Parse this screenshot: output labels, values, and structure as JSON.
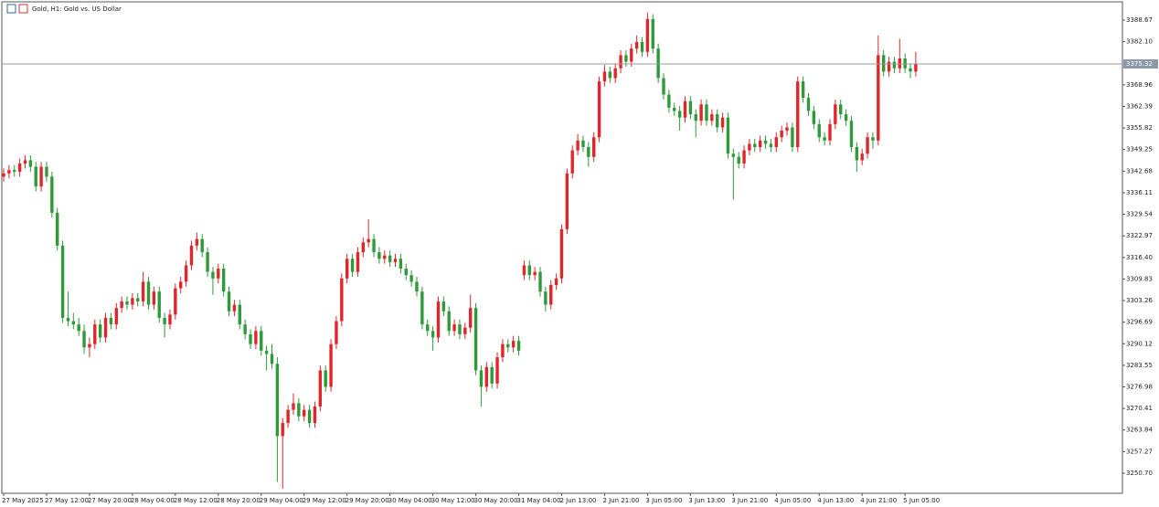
{
  "chart_data": {
    "type": "candlestick",
    "title": "Gold, H1:  Gold vs. US Dollar",
    "categories": [
      "27 May 2025",
      null,
      null,
      null,
      null,
      null,
      null,
      null,
      "27 May 12:00",
      null,
      null,
      null,
      null,
      null,
      null,
      null,
      "27 May 20:00",
      null,
      null,
      null,
      null,
      null,
      null,
      null,
      "28 May 04:00",
      null,
      null,
      null,
      null,
      null,
      null,
      null,
      "28 May 12:00",
      null,
      null,
      null,
      null,
      null,
      null,
      null,
      "28 May 20:00",
      null,
      null,
      null,
      null,
      null,
      null,
      null,
      "29 May 04:00",
      null,
      null,
      null,
      null,
      null,
      null,
      null,
      "29 May 12:00",
      null,
      null,
      null,
      null,
      null,
      null,
      null,
      "29 May 20:00",
      null,
      null,
      null,
      null,
      null,
      null,
      null,
      "30 May 04:00",
      null,
      null,
      null,
      null,
      null,
      null,
      null,
      "30 May 12:00",
      null,
      null,
      null,
      null,
      null,
      null,
      null,
      "30 May 20:00",
      null,
      null,
      null,
      null,
      null,
      null,
      null,
      "31 May 04:00",
      null,
      null,
      null,
      null,
      null,
      null,
      null,
      "2 Jun 13:00",
      null,
      null,
      null,
      null,
      null,
      null,
      null,
      "2 Jun 21:00",
      null,
      null,
      null,
      null,
      null,
      null,
      null,
      "3 Jun 05:00",
      null,
      null,
      null,
      null,
      null,
      null,
      null,
      "3 Jun 13:00",
      null,
      null,
      null,
      null,
      null,
      null,
      null,
      "3 Jun 21:00",
      null,
      null,
      null,
      null,
      null,
      null,
      null,
      "4 Jun 05:00",
      null,
      null,
      null,
      null,
      null,
      null,
      null,
      "4 Jun 13:00",
      null,
      null,
      null,
      null,
      null,
      null,
      null,
      "4 Jun 21:00",
      null,
      null,
      null,
      null,
      null,
      null,
      null,
      "5 Jun 05:00",
      null,
      null
    ],
    "open": [
      3341,
      3342,
      3343,
      3342.5,
      3345,
      3346,
      3344,
      3338,
      3344,
      3341,
      3330,
      3320,
      3298,
      3297,
      3296,
      3294,
      3289,
      3290,
      3296,
      3292,
      3298,
      3296,
      3301,
      3303,
      3302,
      3304,
      3303,
      3309,
      3302,
      3306,
      3298,
      3296,
      3299,
      3307,
      3309,
      3314,
      3320,
      3322,
      3318,
      3312,
      3310,
      3313,
      3306,
      3300,
      3302,
      3296,
      3293,
      3290,
      3294,
      3288,
      3287,
      3284,
      3262,
      3266,
      3270,
      3272,
      3268,
      3270,
      3266,
      3271,
      3282,
      3277,
      3290,
      3297,
      3310,
      3316,
      3312,
      3318,
      3321,
      3322,
      3318,
      3316,
      3317,
      3315,
      3316,
      3313,
      3311,
      3309,
      3306,
      3296,
      3294,
      3292,
      3303,
      3300,
      3294,
      3296,
      3293,
      3295,
      3301,
      3282,
      3277,
      3283,
      3278,
      3286,
      3290,
      3289,
      3291,
      3311,
      3314,
      3311,
      3312,
      3306,
      3302,
      3308,
      3310,
      3325,
      3342,
      3349,
      3352,
      3350,
      3347,
      3353,
      3370,
      3373,
      3371,
      3374,
      3378,
      3376,
      3380,
      3382,
      3379,
      3389,
      3380,
      3371,
      3366,
      3362,
      3361,
      3359,
      3364,
      3360,
      3358,
      3363,
      3358,
      3360,
      3356,
      3359,
      3348,
      3347,
      3345,
      3349,
      3351,
      3350,
      3352,
      3351,
      3350,
      3353,
      3355,
      3356,
      3350,
      3370,
      3365,
      3361,
      3357,
      3353,
      3352,
      3357,
      3363,
      3360,
      3358,
      3350,
      3346,
      3348,
      3353,
      3352,
      3378,
      3373,
      3376,
      3374,
      3377,
      3374,
      3373
    ],
    "high": [
      3343.5,
      3344.5,
      3344.5,
      3346.5,
      3347.5,
      3347.5,
      3345.5,
      3345.5,
      3345.5,
      3342.5,
      3331.5,
      3321.5,
      3306,
      3299.5,
      3298,
      3296,
      3292,
      3297.5,
      3297.5,
      3299.5,
      3299.5,
      3302.5,
      3304.5,
      3304.5,
      3305.5,
      3305.5,
      3312,
      3310.5,
      3307.5,
      3307.5,
      3299.5,
      3300.5,
      3308.5,
      3310.5,
      3315.5,
      3321.5,
      3324,
      3323.5,
      3319.5,
      3313.5,
      3314.5,
      3314.5,
      3307.5,
      3303.5,
      3303.5,
      3297.5,
      3294.5,
      3295.5,
      3295.5,
      3289.5,
      3290,
      3286,
      3267.5,
      3271.5,
      3275,
      3273.5,
      3271.5,
      3271.5,
      3272.5,
      3283.5,
      3283.5,
      3291.5,
      3298.5,
      3311.5,
      3317.5,
      3317.5,
      3319.5,
      3322.5,
      3328,
      3323.5,
      3319.5,
      3318.5,
      3318.5,
      3317.5,
      3317.5,
      3314.5,
      3312.5,
      3310.5,
      3307.5,
      3297.5,
      3295.5,
      3304.5,
      3304.5,
      3301.5,
      3297.5,
      3297.5,
      3296.5,
      3305,
      3302.5,
      3283.5,
      3284.5,
      3284.5,
      3287.5,
      3291.5,
      3291.5,
      3292.5,
      3292.5,
      3315.5,
      3315.5,
      3313.5,
      3313.5,
      3307.5,
      3309.5,
      3311.5,
      3326.5,
      3343.5,
      3350.5,
      3354,
      3353.5,
      3351.5,
      3354.5,
      3371.5,
      3375,
      3374.5,
      3375.5,
      3379.5,
      3379.5,
      3381.5,
      3384,
      3383.5,
      3391,
      3390.5,
      3381.5,
      3372.5,
      3367.5,
      3363.5,
      3362.5,
      3365.5,
      3365.5,
      3361.5,
      3364.5,
      3364.5,
      3361.5,
      3361.5,
      3360.5,
      3360.5,
      3349.5,
      3348.5,
      3350.5,
      3352.5,
      3352.5,
      3353.5,
      3353.5,
      3352.5,
      3354.5,
      3356.5,
      3357.5,
      3357.5,
      3371.5,
      3371.5,
      3366.5,
      3362.5,
      3358.5,
      3354.5,
      3358.5,
      3364.5,
      3364.5,
      3361.5,
      3359.5,
      3351.5,
      3349.5,
      3354.5,
      3354.5,
      3384,
      3379.5,
      3377.5,
      3377.5,
      3383,
      3378.5,
      3375.5,
      3379
    ],
    "low": [
      3339.5,
      3340.5,
      3341,
      3341,
      3343.5,
      3342.5,
      3336.5,
      3336.5,
      3339.5,
      3328.5,
      3318.5,
      3296.5,
      3295.5,
      3294.5,
      3292.5,
      3287,
      3286,
      3288.5,
      3290.5,
      3290.5,
      3294.5,
      3294.5,
      3299.5,
      3300.5,
      3300.5,
      3301.5,
      3301.5,
      3300.5,
      3300.5,
      3296.5,
      3292,
      3294.5,
      3297.5,
      3305.5,
      3307.5,
      3312.5,
      3318.5,
      3316.5,
      3310.5,
      3305,
      3308.5,
      3304.5,
      3298.5,
      3298.5,
      3294.5,
      3291.5,
      3288.5,
      3288.5,
      3286.5,
      3282,
      3282.5,
      3248,
      3246,
      3264.5,
      3268.5,
      3266.5,
      3266.5,
      3264.5,
      3264.5,
      3269.5,
      3275.5,
      3275.5,
      3288.5,
      3295.5,
      3308.5,
      3310.5,
      3310.5,
      3316.5,
      3319.5,
      3316.5,
      3314.5,
      3314.5,
      3313.5,
      3313.5,
      3311.5,
      3309.5,
      3307.5,
      3304.5,
      3294.5,
      3292.5,
      3288,
      3290.5,
      3298.5,
      3292.5,
      3292.5,
      3291.5,
      3291.5,
      3293.5,
      3280.5,
      3271,
      3275.5,
      3276.5,
      3276.5,
      3284.5,
      3287.5,
      3287.5,
      3286.5,
      3309.5,
      3309.5,
      3309.5,
      3304.5,
      3300,
      3300.5,
      3306.5,
      3308.5,
      3323.5,
      3340.5,
      3347.5,
      3348.5,
      3344,
      3345.5,
      3351.5,
      3368.5,
      3369.5,
      3369.5,
      3372.5,
      3374.5,
      3374.5,
      3378.5,
      3377.5,
      3377.5,
      3378.5,
      3369.5,
      3364.5,
      3360.5,
      3359.5,
      3355,
      3357.5,
      3358.5,
      3353,
      3356.5,
      3356.5,
      3356.5,
      3354.5,
      3354.5,
      3346.5,
      3334,
      3343.5,
      3343.5,
      3347.5,
      3348.5,
      3348.5,
      3349.5,
      3348.5,
      3348.5,
      3351.5,
      3353.5,
      3348.5,
      3348.5,
      3363.5,
      3359.5,
      3355.5,
      3351.5,
      3350.5,
      3350.5,
      3355.5,
      3358.5,
      3356.5,
      3348.5,
      3342.5,
      3344.5,
      3346.5,
      3349.5,
      3350.5,
      3371.5,
      3371.5,
      3372.5,
      3372.5,
      3372.5,
      3371,
      3371.5
    ],
    "close": [
      3342,
      3343,
      3342.5,
      3345,
      3346,
      3344,
      3338,
      3344,
      3341,
      3330,
      3320,
      3298,
      3297,
      3296,
      3294,
      3289,
      3290,
      3296,
      3292,
      3298,
      3296,
      3301,
      3303,
      3302,
      3304,
      3303,
      3309,
      3302,
      3306,
      3298,
      3296,
      3299,
      3307,
      3309,
      3314,
      3320,
      3322,
      3318,
      3312,
      3310,
      3313,
      3306,
      3300,
      3302,
      3296,
      3293,
      3290,
      3294,
      3288,
      3287,
      3284,
      3262,
      3266,
      3270,
      3272,
      3268,
      3270,
      3266,
      3271,
      3282,
      3277,
      3290,
      3297,
      3310,
      3316,
      3312,
      3318,
      3321,
      3322,
      3318,
      3316,
      3317,
      3315,
      3316,
      3313,
      3311,
      3309,
      3306,
      3296,
      3294,
      3292,
      3303,
      3300,
      3294,
      3296,
      3293,
      3295,
      3301,
      3282,
      3277,
      3283,
      3278,
      3286,
      3290,
      3289,
      3291,
      3288,
      3314,
      3311,
      3312,
      3306,
      3302,
      3308,
      3310,
      3325,
      3342,
      3349,
      3352,
      3350,
      3347,
      3353,
      3370,
      3373,
      3371,
      3374,
      3378,
      3376,
      3380,
      3382,
      3379,
      3389,
      3380,
      3371,
      3366,
      3362,
      3361,
      3359,
      3364,
      3360,
      3358,
      3363,
      3358,
      3360,
      3356,
      3359,
      3348,
      3347,
      3345,
      3349,
      3351,
      3350,
      3352,
      3351,
      3350,
      3353,
      3355,
      3356,
      3350,
      3370,
      3365,
      3361,
      3357,
      3353,
      3352,
      3357,
      3363,
      3360,
      3358,
      3350,
      3346,
      3348,
      3353,
      3352,
      3378,
      3373,
      3376,
      3374,
      3377,
      3374,
      3373,
      3375.32
    ],
    "up_color": "#e0262b",
    "down_color": "#2e9a3a",
    "ylim": [
      3244.57,
      3394.24
    ],
    "yticks": [
      3388.67,
      {
        "value": 3382.1,
        "label": "3382.10"
      },
      3368.96,
      3362.39,
      3355.82,
      3349.25,
      3342.68,
      3336.11,
      3329.54,
      3322.97,
      {
        "value": 3316.4,
        "label": "3316.40"
      },
      3309.83,
      3303.26,
      3296.69,
      3290.12,
      3283.55,
      3276.98,
      3270.41,
      3263.84,
      3257.27,
      {
        "value": 3250.7,
        "label": "3250.70"
      }
    ],
    "current_price": 3375.32
  }
}
